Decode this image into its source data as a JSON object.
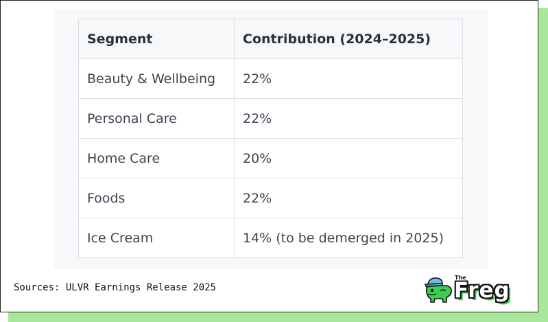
{
  "table": {
    "headers": [
      "Segment",
      "Contribution (2024–2025)"
    ],
    "rows": [
      [
        "Beauty & Wellbeing",
        "22%"
      ],
      [
        "Personal Care",
        "22%"
      ],
      [
        "Home Care",
        "20%"
      ],
      [
        "Foods",
        "22%"
      ],
      [
        "Ice Cream",
        "14% (to be demerged in 2025)"
      ]
    ]
  },
  "footer": {
    "sources": "Sources: ULVR Earnings Release 2025"
  },
  "logo": {
    "small_text": "The",
    "word": "Freg"
  },
  "colors": {
    "shadow_green": "#a9e89a",
    "logo_green": "#3ccf4e",
    "cap_blue": "#6fb8e8"
  }
}
